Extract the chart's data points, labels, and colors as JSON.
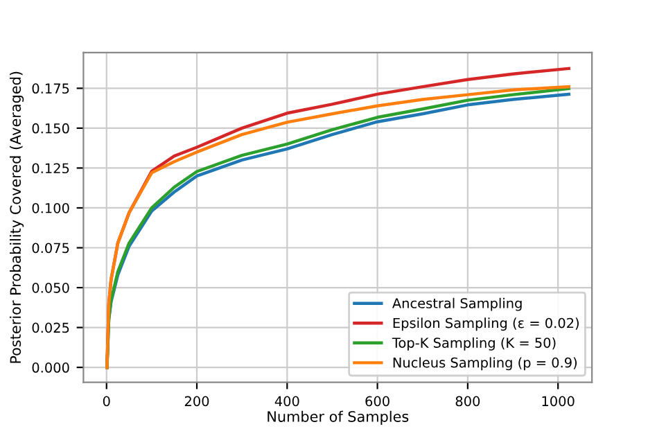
{
  "chart_data": {
    "type": "line",
    "xlabel": "Number of Samples",
    "ylabel": "Posterior Probability Covered (Averaged)",
    "x": [
      1,
      5,
      10,
      25,
      50,
      100,
      150,
      200,
      300,
      400,
      500,
      600,
      700,
      800,
      900,
      1024
    ],
    "series": [
      {
        "name": "Ancestral Sampling",
        "color": "#1f77b4",
        "values": [
          0,
          0.03,
          0.041,
          0.058,
          0.076,
          0.098,
          0.11,
          0.12,
          0.13,
          0.137,
          0.146,
          0.154,
          0.159,
          0.1646,
          0.168,
          0.1713
        ]
      },
      {
        "name": "Epsilon Sampling (ε = 0.02)",
        "color": "#d62728",
        "values": [
          0,
          0.04,
          0.055,
          0.078,
          0.097,
          0.123,
          0.1325,
          0.138,
          0.15,
          0.1594,
          0.165,
          0.1713,
          0.176,
          0.1805,
          0.184,
          0.1874
        ]
      },
      {
        "name": "Top-K Sampling (K = 50)",
        "color": "#2ca02c",
        "values": [
          0,
          0.03,
          0.042,
          0.06,
          0.078,
          0.1,
          0.113,
          0.1228,
          0.133,
          0.14,
          0.149,
          0.1568,
          0.162,
          0.1675,
          0.171,
          0.1748
        ]
      },
      {
        "name": "Nucleus Sampling (p = 0.9)",
        "color": "#ff7f0e",
        "values": [
          0,
          0.04,
          0.055,
          0.078,
          0.097,
          0.122,
          0.129,
          0.135,
          0.146,
          0.1537,
          0.159,
          0.164,
          0.168,
          0.171,
          0.174,
          0.176
        ]
      }
    ],
    "xlim": [
      -51.2,
      1075.2
    ],
    "ylim": [
      -0.0094,
      0.1974
    ],
    "xticks": [
      0,
      200,
      400,
      600,
      800,
      1000
    ],
    "yticks": [
      {
        "value": 0,
        "label": "0.000"
      },
      {
        "value": 0.025,
        "label": "0.025"
      },
      {
        "value": 0.05,
        "label": "0.050"
      },
      {
        "value": 0.075,
        "label": "0.075"
      },
      {
        "value": 0.1,
        "label": "0.100"
      },
      {
        "value": 0.125,
        "label": "0.125"
      },
      {
        "value": 0.15,
        "label": "0.150"
      },
      {
        "value": 0.175,
        "label": "0.175"
      }
    ],
    "grid": true,
    "legend": "lower right",
    "marker": "none",
    "line_style": "solid"
  }
}
